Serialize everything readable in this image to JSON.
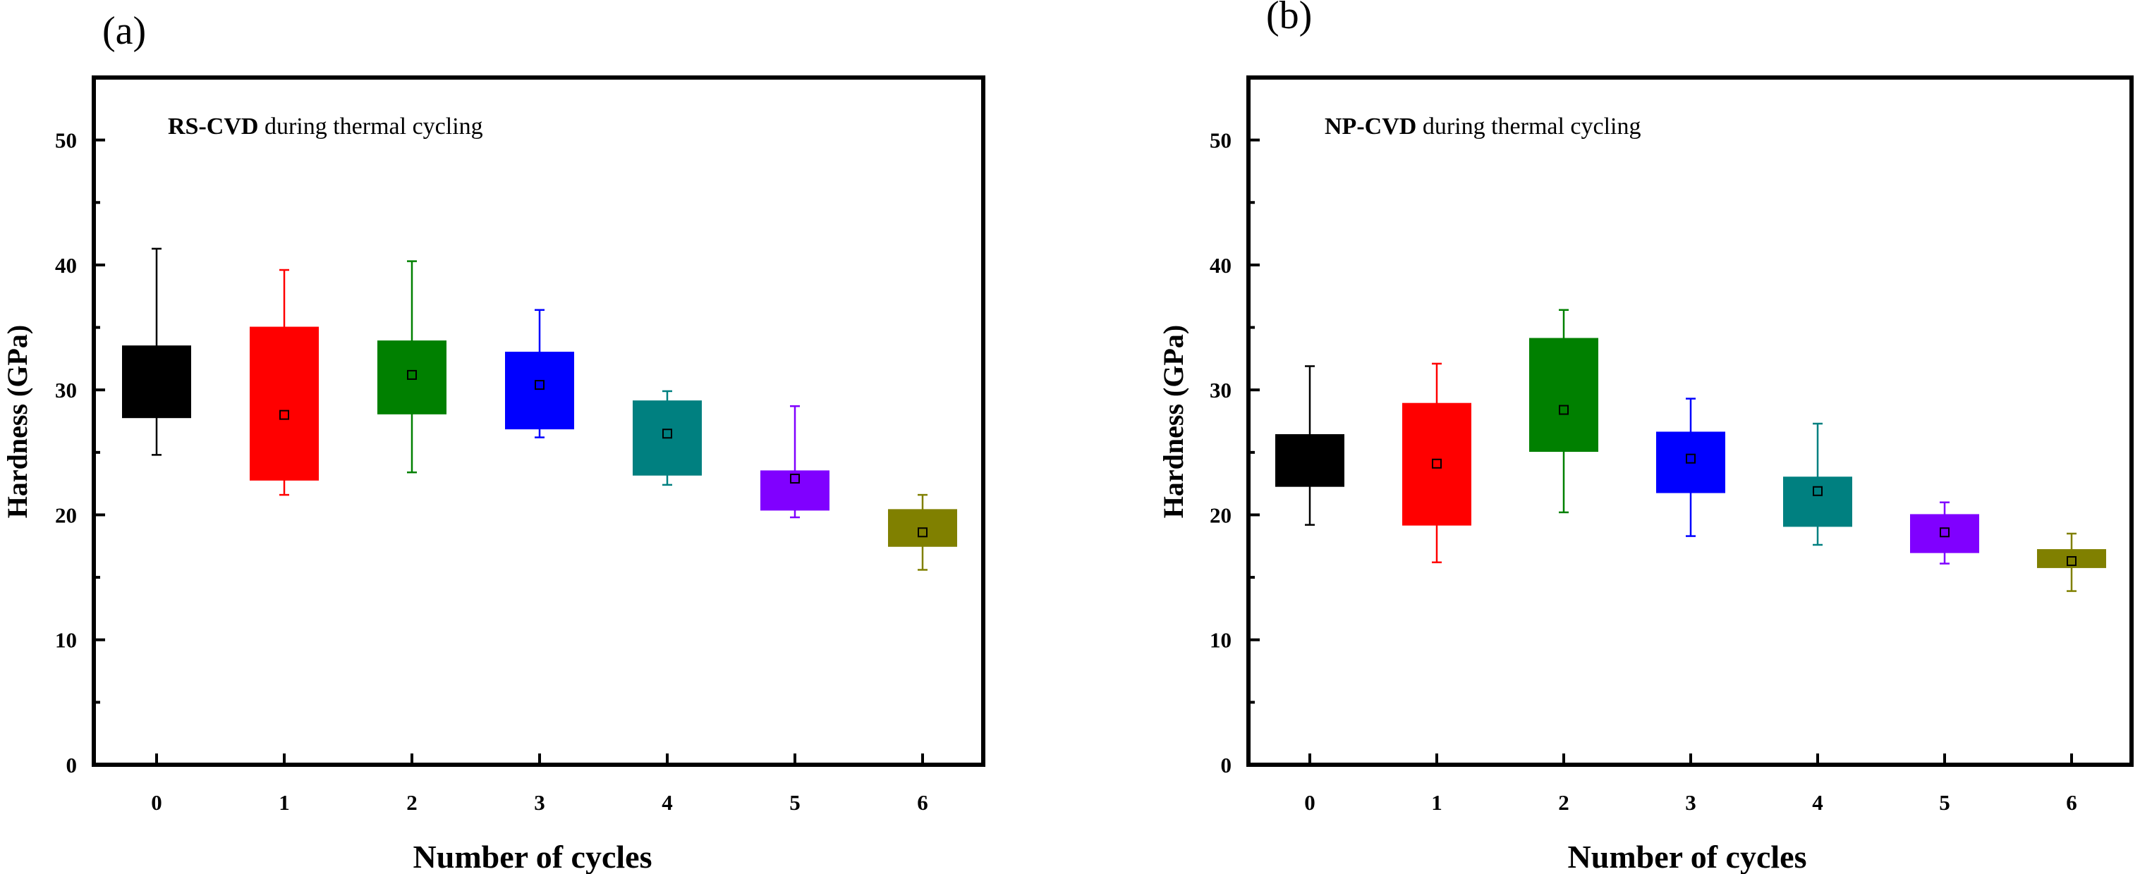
{
  "chart_data": [
    {
      "type": "box",
      "panel_label": "(a)",
      "annotation": {
        "bold": "RS-CVD",
        "rest": " during thermal cycling"
      },
      "xlabel": "Number of cycles",
      "ylabel": "Hardness (GPa)",
      "categories": [
        "0",
        "1",
        "2",
        "3",
        "4",
        "5",
        "6"
      ],
      "ylim": [
        0,
        55
      ],
      "yticks": [
        0,
        10,
        20,
        30,
        40,
        50
      ],
      "grid": false,
      "boxes": [
        {
          "whisker_low": 24.8,
          "q1": 27.8,
          "q3": 33.5,
          "whisker_high": 41.3,
          "mean": null,
          "color": "#000000"
        },
        {
          "whisker_low": 21.6,
          "q1": 22.8,
          "q3": 35.0,
          "whisker_high": 39.6,
          "mean": 28.0,
          "color": "#ff0000"
        },
        {
          "whisker_low": 23.4,
          "q1": 28.1,
          "q3": 33.9,
          "whisker_high": 40.3,
          "mean": 31.2,
          "color": "#008000"
        },
        {
          "whisker_low": 26.2,
          "q1": 26.9,
          "q3": 33.0,
          "whisker_high": 36.4,
          "mean": 30.4,
          "color": "#0000ff"
        },
        {
          "whisker_low": 22.4,
          "q1": 23.2,
          "q3": 29.1,
          "whisker_high": 29.9,
          "mean": 26.5,
          "color": "#008080"
        },
        {
          "whisker_low": 19.8,
          "q1": 20.4,
          "q3": 23.5,
          "whisker_high": 28.7,
          "mean": 22.9,
          "color": "#8000ff"
        },
        {
          "whisker_low": 15.6,
          "q1": 17.5,
          "q3": 20.4,
          "whisker_high": 21.6,
          "mean": 18.6,
          "color": "#808000"
        }
      ]
    },
    {
      "type": "box",
      "panel_label": "(b)",
      "annotation": {
        "bold": "NP-CVD",
        "rest": " during thermal cycling"
      },
      "xlabel": "Number of cycles",
      "ylabel": "Hardness (GPa)",
      "categories": [
        "0",
        "1",
        "2",
        "3",
        "4",
        "5",
        "6"
      ],
      "ylim": [
        0,
        55
      ],
      "yticks": [
        0,
        10,
        20,
        30,
        40,
        50
      ],
      "grid": false,
      "boxes": [
        {
          "whisker_low": 19.2,
          "q1": 22.3,
          "q3": 26.4,
          "whisker_high": 31.9,
          "mean": null,
          "color": "#000000"
        },
        {
          "whisker_low": 16.2,
          "q1": 19.2,
          "q3": 28.9,
          "whisker_high": 32.1,
          "mean": 24.1,
          "color": "#ff0000"
        },
        {
          "whisker_low": 20.2,
          "q1": 25.1,
          "q3": 34.1,
          "whisker_high": 36.4,
          "mean": 28.4,
          "color": "#008000"
        },
        {
          "whisker_low": 18.3,
          "q1": 21.8,
          "q3": 26.6,
          "whisker_high": 29.3,
          "mean": 24.5,
          "color": "#0000ff"
        },
        {
          "whisker_low": 17.6,
          "q1": 19.1,
          "q3": 23.0,
          "whisker_high": 27.3,
          "mean": 21.9,
          "color": "#008080"
        },
        {
          "whisker_low": 16.1,
          "q1": 17.0,
          "q3": 20.0,
          "whisker_high": 21.0,
          "mean": 18.6,
          "color": "#8000ff"
        },
        {
          "whisker_low": 13.9,
          "q1": 15.8,
          "q3": 17.2,
          "whisker_high": 18.5,
          "mean": 16.3,
          "color": "#808000"
        }
      ]
    }
  ]
}
